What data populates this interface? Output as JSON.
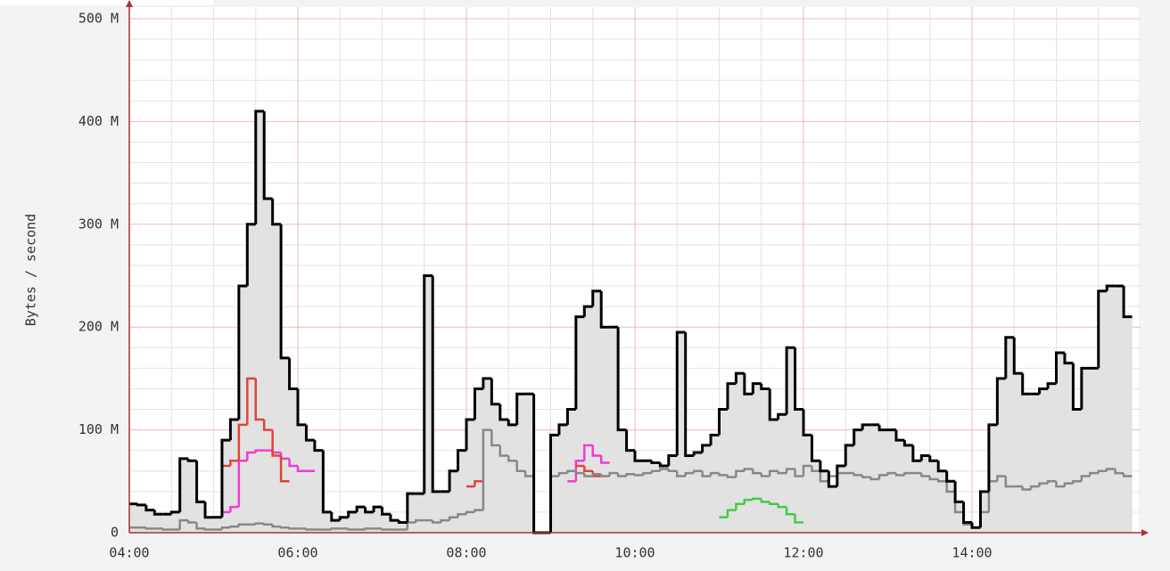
{
  "chart_data": {
    "type": "step",
    "ylabel": "Bytes / second",
    "xlim": [
      4,
      16
    ],
    "ylim": [
      0,
      500
    ],
    "xticks": [
      {
        "value": 4,
        "label": "04:00"
      },
      {
        "value": 6,
        "label": "06:00"
      },
      {
        "value": 8,
        "label": "08:00"
      },
      {
        "value": 10,
        "label": "10:00"
      },
      {
        "value": 12,
        "label": "12:00"
      },
      {
        "value": 14,
        "label": "14:00"
      }
    ],
    "yticks": [
      0,
      {
        "value": 100,
        "label": "100 M"
      },
      {
        "value": 200,
        "label": "200 M"
      },
      {
        "value": 300,
        "label": "300 M"
      },
      {
        "value": 400,
        "label": "400 M"
      },
      {
        "value": 500,
        "label": "500 M"
      }
    ],
    "xminor": [
      4.5,
      5,
      5.5,
      6.5,
      7,
      7.5,
      8.5,
      9,
      9.5,
      10.5,
      11,
      11.5,
      12.5,
      13,
      13.5,
      14.5,
      15,
      15.5
    ],
    "yminor": [
      20,
      40,
      60,
      80,
      120,
      140,
      160,
      180,
      220,
      240,
      260,
      280,
      320,
      340,
      360,
      380,
      420,
      440,
      460,
      480
    ],
    "grid": true,
    "x": [
      4,
      4.1,
      4.2,
      4.3,
      4.4,
      4.5,
      4.6,
      4.7,
      4.8,
      4.9,
      5,
      5.1,
      5.2,
      5.3,
      5.4,
      5.5,
      5.6,
      5.7,
      5.8,
      5.9,
      6,
      6.1,
      6.2,
      6.3,
      6.4,
      6.5,
      6.6,
      6.7,
      6.8,
      6.9,
      7,
      7.1,
      7.2,
      7.3,
      7.4,
      7.5,
      7.6,
      7.7,
      7.8,
      7.9,
      8,
      8.1,
      8.2,
      8.3,
      8.4,
      8.5,
      8.6,
      8.7,
      8.8,
      8.9,
      9,
      9.1,
      9.2,
      9.3,
      9.4,
      9.5,
      9.6,
      9.7,
      9.8,
      9.9,
      10,
      10.1,
      10.2,
      10.3,
      10.4,
      10.5,
      10.6,
      10.7,
      10.8,
      10.9,
      11,
      11.1,
      11.2,
      11.3,
      11.4,
      11.5,
      11.6,
      11.7,
      11.8,
      11.9,
      12,
      12.1,
      12.2,
      12.3,
      12.4,
      12.5,
      12.6,
      12.7,
      12.8,
      12.9,
      13,
      13.1,
      13.2,
      13.3,
      13.4,
      13.5,
      13.6,
      13.7,
      13.8,
      13.9,
      14,
      14.1,
      14.2,
      14.3,
      14.4,
      14.5,
      14.6,
      14.7,
      14.8,
      14.9,
      15,
      15.1,
      15.2,
      15.3,
      15.4,
      15.5,
      15.6,
      15.7,
      15.8
    ],
    "series": [
      {
        "color": "#000000",
        "fill": "#e2e2e2",
        "values": [
          28,
          27,
          22,
          18,
          18,
          20,
          72,
          70,
          30,
          15,
          15,
          90,
          110,
          240,
          300,
          410,
          325,
          300,
          170,
          140,
          105,
          90,
          80,
          20,
          12,
          15,
          20,
          25,
          20,
          25,
          18,
          12,
          10,
          38,
          38,
          250,
          40,
          40,
          60,
          80,
          110,
          140,
          150,
          125,
          110,
          105,
          135,
          135,
          0,
          0,
          95,
          105,
          120,
          210,
          220,
          235,
          200,
          200,
          100,
          80,
          70,
          70,
          68,
          65,
          75,
          195,
          75,
          78,
          85,
          95,
          120,
          145,
          155,
          135,
          145,
          140,
          110,
          115,
          180,
          120,
          95,
          70,
          60,
          45,
          65,
          85,
          100,
          105,
          105,
          100,
          100,
          90,
          85,
          70,
          75,
          70,
          60,
          50,
          30,
          10,
          5,
          40,
          105,
          150,
          190,
          155,
          135,
          135,
          140,
          145,
          175,
          165,
          120,
          160,
          160,
          235,
          240,
          240,
          210
        ]
      },
      {
        "color": "#888888",
        "values": [
          5,
          5,
          4,
          4,
          3,
          3,
          12,
          10,
          4,
          3,
          3,
          5,
          6,
          8,
          8,
          9,
          8,
          6,
          5,
          4,
          4,
          3,
          3,
          3,
          4,
          4,
          3,
          3,
          4,
          4,
          3,
          3,
          3,
          10,
          12,
          12,
          10,
          12,
          15,
          18,
          20,
          22,
          100,
          85,
          75,
          70,
          60,
          55,
          0,
          0,
          55,
          58,
          60,
          58,
          55,
          57,
          55,
          58,
          55,
          57,
          56,
          58,
          60,
          62,
          60,
          55,
          58,
          60,
          55,
          58,
          56,
          54,
          60,
          62,
          58,
          55,
          60,
          58,
          62,
          55,
          65,
          60,
          50,
          55,
          58,
          58,
          56,
          54,
          52,
          56,
          58,
          56,
          58,
          58,
          55,
          52,
          50,
          40,
          20,
          8,
          5,
          20,
          50,
          55,
          45,
          45,
          42,
          45,
          48,
          50,
          45,
          48,
          50,
          55,
          58,
          60,
          62,
          58,
          55
        ]
      },
      {
        "color": "#e0443a",
        "x": [
          5.1,
          5.2,
          5.3,
          5.4,
          5.5,
          5.6,
          5.7,
          5.8,
          5.9,
          8,
          8.1,
          8.2,
          9.3,
          9.4,
          9.5
        ],
        "values": [
          65,
          70,
          105,
          150,
          110,
          100,
          75,
          50,
          null,
          45,
          50,
          null,
          65,
          60,
          55
        ]
      },
      {
        "color": "#f03cd0",
        "x": [
          5.1,
          5.2,
          5.3,
          5.4,
          5.5,
          5.6,
          5.7,
          5.8,
          5.9,
          6,
          6.1,
          6.2,
          9.2,
          9.3,
          9.4,
          9.5,
          9.6
        ],
        "values": [
          20,
          25,
          70,
          78,
          80,
          80,
          78,
          72,
          65,
          60,
          60,
          null,
          50,
          70,
          85,
          75,
          68
        ]
      },
      {
        "color": "#44cc44",
        "x": [
          11,
          11.1,
          11.2,
          11.3,
          11.4,
          11.5,
          11.6,
          11.7,
          11.8,
          11.9
        ],
        "values": [
          15,
          22,
          28,
          32,
          33,
          30,
          28,
          25,
          18,
          10
        ]
      }
    ]
  }
}
